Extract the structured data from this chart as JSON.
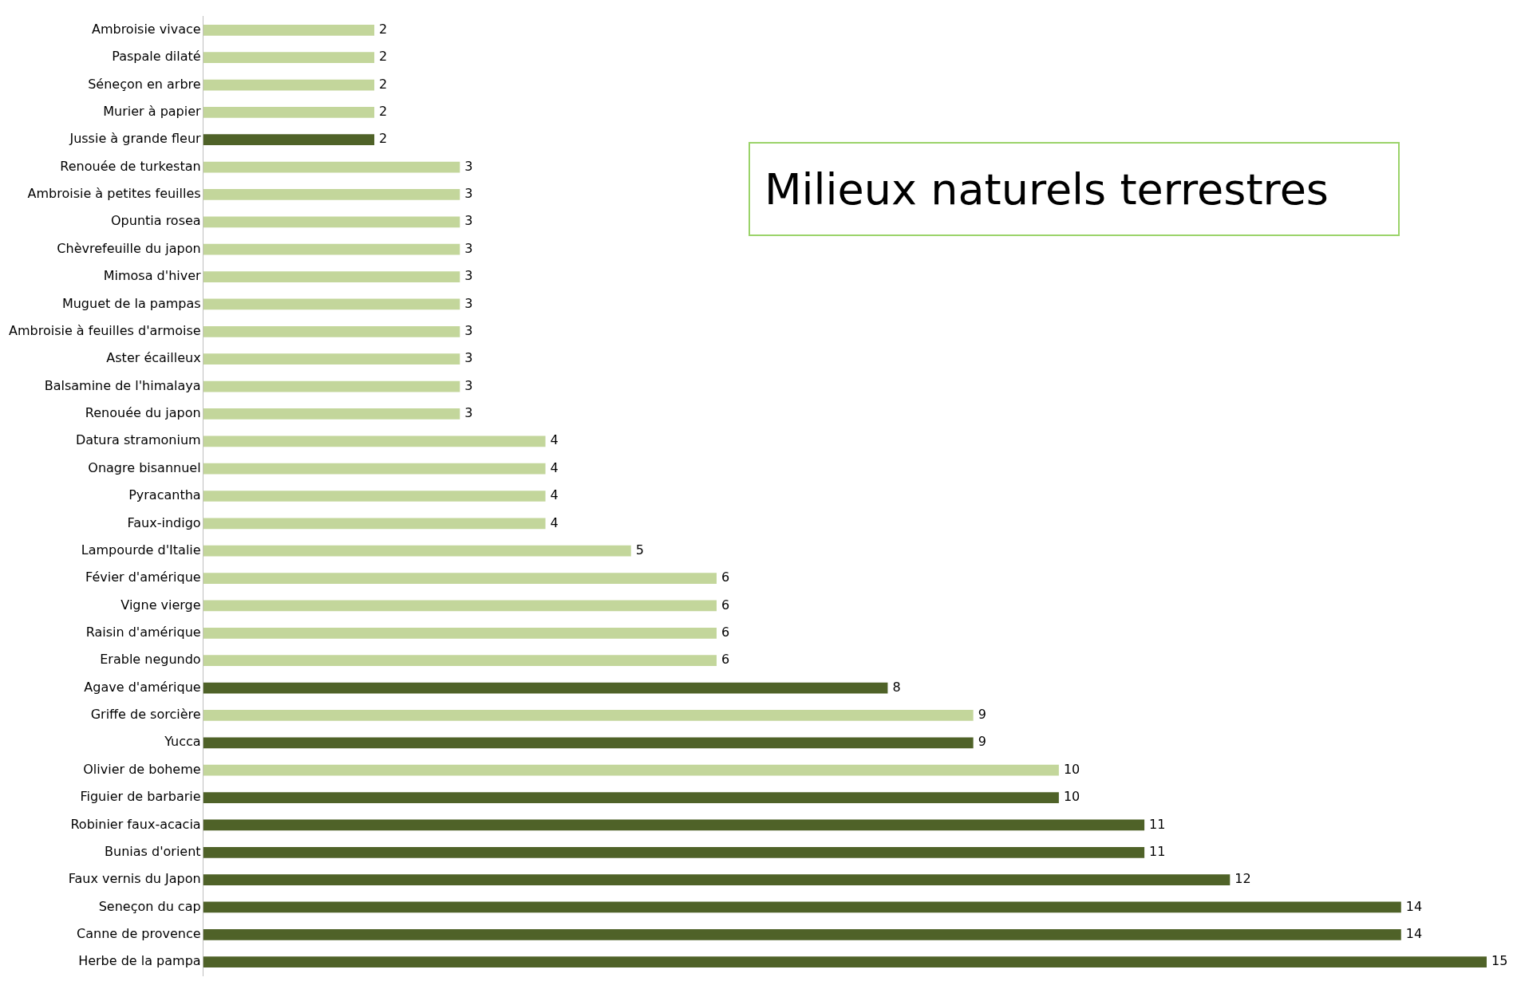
{
  "chart_data": {
    "type": "bar",
    "orientation": "horizontal",
    "title": "Milieux naturels terrestres",
    "data_labels": true,
    "categories": [
      "Ambroisie vivace",
      "Paspale dilaté",
      "Séneçon en arbre",
      "Murier à papier",
      "Jussie à grande fleur",
      "Renouée de turkestan",
      "Ambroisie à petites feuilles",
      "Opuntia rosea",
      "Chèvrefeuille du japon",
      "Mimosa d'hiver",
      "Muguet de la pampas",
      "Ambroisie à feuilles d'armoise",
      "Aster écailleux",
      "Balsamine de l'himalaya",
      "Renouée du japon",
      "Datura stramonium",
      "Onagre bisannuel",
      "Pyracantha",
      "Faux-indigo",
      "Lampourde d'Italie",
      "Févier d'amérique",
      "Vigne vierge",
      "Raisin d'amérique",
      "Erable negundo",
      "Agave d'amérique",
      "Griffe de sorcière",
      "Yucca",
      "Olivier de boheme",
      "Figuier de barbarie",
      "Robinier faux-acacia",
      "Bunias d'orient",
      "Faux vernis du Japon",
      "Seneçon du cap",
      "Canne de provence",
      "Herbe de la pampa"
    ],
    "values": [
      2,
      2,
      2,
      2,
      2,
      3,
      3,
      3,
      3,
      3,
      3,
      3,
      3,
      3,
      3,
      4,
      4,
      4,
      4,
      5,
      6,
      6,
      6,
      6,
      8,
      9,
      9,
      10,
      10,
      11,
      11,
      12,
      14,
      14,
      15
    ],
    "colors": [
      "#c3d69b",
      "#c3d69b",
      "#c3d69b",
      "#c3d69b",
      "#4f6228",
      "#c3d69b",
      "#c3d69b",
      "#c3d69b",
      "#c3d69b",
      "#c3d69b",
      "#c3d69b",
      "#c3d69b",
      "#c3d69b",
      "#c3d69b",
      "#c3d69b",
      "#c3d69b",
      "#c3d69b",
      "#c3d69b",
      "#c3d69b",
      "#c3d69b",
      "#c3d69b",
      "#c3d69b",
      "#c3d69b",
      "#c3d69b",
      "#4f6228",
      "#c3d69b",
      "#4f6228",
      "#c3d69b",
      "#4f6228",
      "#4f6228",
      "#4f6228",
      "#4f6228",
      "#4f6228",
      "#4f6228",
      "#4f6228"
    ]
  }
}
